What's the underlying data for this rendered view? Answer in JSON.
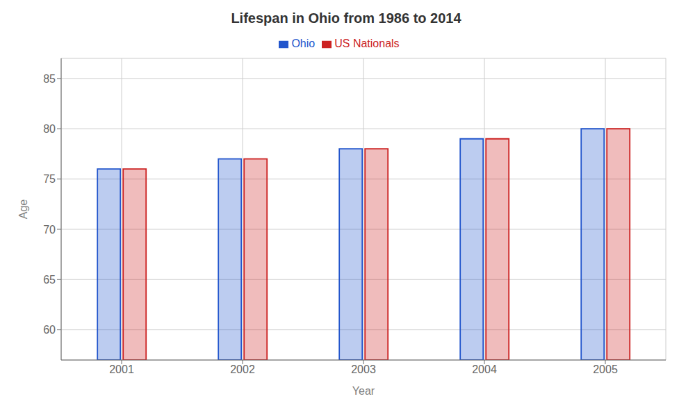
{
  "chart_data": {
    "type": "bar",
    "title": "Lifespan in Ohio from 1986 to 2014",
    "xlabel": "Year",
    "ylabel": "Age",
    "categories": [
      2001,
      2002,
      2003,
      2004,
      2005
    ],
    "series": [
      {
        "name": "Ohio",
        "color": "#2255cc",
        "values": [
          76,
          77,
          78,
          79,
          80
        ]
      },
      {
        "name": "US Nationals",
        "color": "#cc2222",
        "values": [
          76,
          77,
          78,
          79,
          80
        ]
      }
    ],
    "ylim": [
      57,
      87
    ],
    "yticks": [
      60,
      65,
      70,
      75,
      80,
      85
    ],
    "grid": true,
    "legend": "top"
  }
}
